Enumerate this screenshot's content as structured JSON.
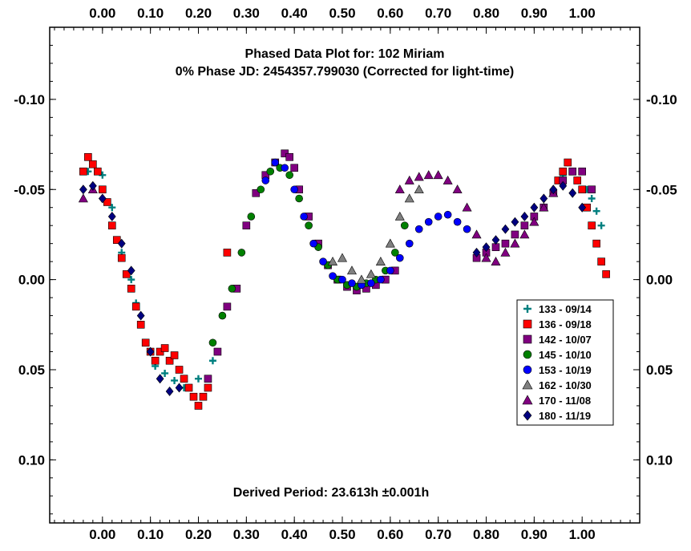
{
  "chart_data": {
    "type": "scatter",
    "title": "Phased Data Plot for: 102 Miriam",
    "subtitle": "0% Phase JD:  2454357.799030   (Corrected for light-time)",
    "annotation": "Derived Period: 23.613h   ±0.001h",
    "xlabel": "",
    "ylabel": "",
    "x_ticks": [
      "0.00",
      "0.10",
      "0.20",
      "0.30",
      "0.40",
      "0.50",
      "0.60",
      "0.70",
      "0.80",
      "0.90",
      "1.00"
    ],
    "y_ticks": [
      "-0.10",
      "-0.05",
      "0.00",
      "0.05",
      "0.10"
    ],
    "xlim": [
      -0.11,
      1.12
    ],
    "ylim": [
      -0.14,
      0.135
    ],
    "y_inverted": true,
    "grid": false,
    "legend_position": "right",
    "series": [
      {
        "name": "133 - 09/14",
        "marker": "cross",
        "color": "#008080",
        "x": [
          -0.03,
          0.0,
          0.02,
          0.04,
          0.06,
          0.07,
          0.09,
          0.11,
          0.13,
          0.15,
          0.17,
          0.2,
          0.23,
          0.96,
          0.99,
          1.01,
          1.02,
          1.03,
          1.04
        ],
        "y": [
          -0.06,
          -0.058,
          -0.04,
          -0.015,
          0.0,
          0.013,
          0.035,
          0.048,
          0.052,
          0.056,
          0.06,
          0.055,
          0.045,
          -0.058,
          -0.055,
          -0.05,
          -0.045,
          -0.038,
          -0.03
        ]
      },
      {
        "name": "136 - 09/18",
        "marker": "square",
        "color": "#ff0000",
        "x": [
          -0.04,
          -0.03,
          -0.02,
          -0.01,
          0.0,
          0.01,
          0.02,
          0.03,
          0.04,
          0.05,
          0.06,
          0.07,
          0.08,
          0.09,
          0.1,
          0.11,
          0.12,
          0.13,
          0.14,
          0.15,
          0.16,
          0.17,
          0.18,
          0.19,
          0.2,
          0.21,
          0.22,
          0.26,
          0.95,
          0.96,
          0.97,
          0.98,
          0.99,
          1.0,
          1.01,
          1.02,
          1.03,
          1.04,
          1.05
        ],
        "y": [
          -0.06,
          -0.068,
          -0.064,
          -0.06,
          -0.05,
          -0.043,
          -0.03,
          -0.022,
          -0.012,
          -0.003,
          0.005,
          0.015,
          0.025,
          0.035,
          0.04,
          0.045,
          0.04,
          0.038,
          0.045,
          0.042,
          0.05,
          0.055,
          0.06,
          0.065,
          0.07,
          0.065,
          0.06,
          -0.015,
          -0.055,
          -0.06,
          -0.065,
          -0.06,
          -0.055,
          -0.05,
          -0.04,
          -0.03,
          -0.02,
          -0.01,
          -0.003
        ]
      },
      {
        "name": "142 - 10/07",
        "marker": "square",
        "color": "#800080",
        "x": [
          0.22,
          0.24,
          0.26,
          0.28,
          0.3,
          0.32,
          0.34,
          0.36,
          0.38,
          0.39,
          0.4,
          0.41,
          0.43,
          0.45,
          0.47,
          0.49,
          0.51,
          0.53,
          0.55,
          0.57,
          0.59,
          0.61,
          0.78,
          0.8,
          0.82,
          0.84,
          0.86,
          0.88,
          0.9,
          0.92,
          0.94,
          0.96,
          0.98,
          1.0,
          1.02
        ],
        "y": [
          0.055,
          0.04,
          0.015,
          0.005,
          -0.03,
          -0.048,
          -0.058,
          -0.065,
          -0.07,
          -0.068,
          -0.062,
          -0.05,
          -0.035,
          -0.02,
          -0.008,
          0.0,
          0.004,
          0.006,
          0.005,
          0.003,
          0.0,
          -0.005,
          -0.012,
          -0.015,
          -0.018,
          -0.02,
          -0.025,
          -0.03,
          -0.035,
          -0.04,
          -0.048,
          -0.055,
          -0.06,
          -0.06,
          -0.05
        ]
      },
      {
        "name": "145 - 10/10",
        "marker": "circle",
        "color": "#008000",
        "x": [
          0.23,
          0.25,
          0.27,
          0.29,
          0.31,
          0.33,
          0.35,
          0.37,
          0.39,
          0.41,
          0.43,
          0.45,
          0.47,
          0.49,
          0.51,
          0.53,
          0.55,
          0.57,
          0.59,
          0.61,
          0.63
        ],
        "y": [
          0.035,
          0.02,
          0.005,
          -0.015,
          -0.035,
          -0.05,
          -0.06,
          -0.062,
          -0.058,
          -0.045,
          -0.03,
          -0.018,
          -0.008,
          0.0,
          0.003,
          0.004,
          0.002,
          0.0,
          -0.005,
          -0.015,
          -0.03
        ]
      },
      {
        "name": "153 - 10/19",
        "marker": "circle",
        "color": "#0000ff",
        "x": [
          0.34,
          0.36,
          0.38,
          0.4,
          0.42,
          0.44,
          0.46,
          0.48,
          0.5,
          0.52,
          0.54,
          0.56,
          0.58,
          0.6,
          0.62,
          0.64,
          0.66,
          0.68,
          0.7,
          0.72,
          0.74,
          0.76
        ],
        "y": [
          -0.055,
          -0.065,
          -0.062,
          -0.05,
          -0.035,
          -0.02,
          -0.01,
          -0.002,
          0.0,
          0.002,
          0.003,
          0.002,
          0.0,
          -0.005,
          -0.012,
          -0.02,
          -0.028,
          -0.032,
          -0.035,
          -0.036,
          -0.032,
          -0.028
        ]
      },
      {
        "name": "162 - 10/30",
        "marker": "triangle",
        "color": "#808080",
        "x": [
          0.48,
          0.5,
          0.52,
          0.54,
          0.56,
          0.58,
          0.6,
          0.62,
          0.64,
          0.66
        ],
        "y": [
          -0.01,
          -0.012,
          -0.005,
          0.0,
          -0.003,
          -0.01,
          -0.02,
          -0.035,
          -0.045,
          -0.05
        ]
      },
      {
        "name": "170 - 11/08",
        "marker": "triangle",
        "color": "#800080",
        "x": [
          -0.04,
          -0.02,
          0.62,
          0.64,
          0.66,
          0.68,
          0.7,
          0.72,
          0.74,
          0.76,
          0.78,
          0.8,
          0.82,
          0.84,
          0.86,
          0.88,
          0.9,
          0.92,
          0.94
        ],
        "y": [
          -0.045,
          -0.05,
          -0.05,
          -0.055,
          -0.057,
          -0.058,
          -0.058,
          -0.055,
          -0.05,
          -0.04,
          -0.025,
          -0.012,
          -0.01,
          -0.015,
          -0.02,
          -0.025,
          -0.032,
          -0.04,
          -0.048
        ]
      },
      {
        "name": "180 - 11/19",
        "marker": "diamond",
        "color": "#000080",
        "x": [
          -0.04,
          -0.02,
          0.0,
          0.02,
          0.04,
          0.06,
          0.08,
          0.1,
          0.12,
          0.14,
          0.16,
          0.78,
          0.8,
          0.82,
          0.84,
          0.86,
          0.88,
          0.9,
          0.92,
          0.94,
          0.96,
          0.98,
          1.0
        ],
        "y": [
          -0.05,
          -0.052,
          -0.045,
          -0.035,
          -0.02,
          -0.005,
          0.02,
          0.04,
          0.055,
          0.062,
          0.06,
          -0.015,
          -0.018,
          -0.022,
          -0.028,
          -0.032,
          -0.035,
          -0.04,
          -0.045,
          -0.05,
          -0.052,
          -0.048,
          -0.04
        ]
      }
    ]
  }
}
